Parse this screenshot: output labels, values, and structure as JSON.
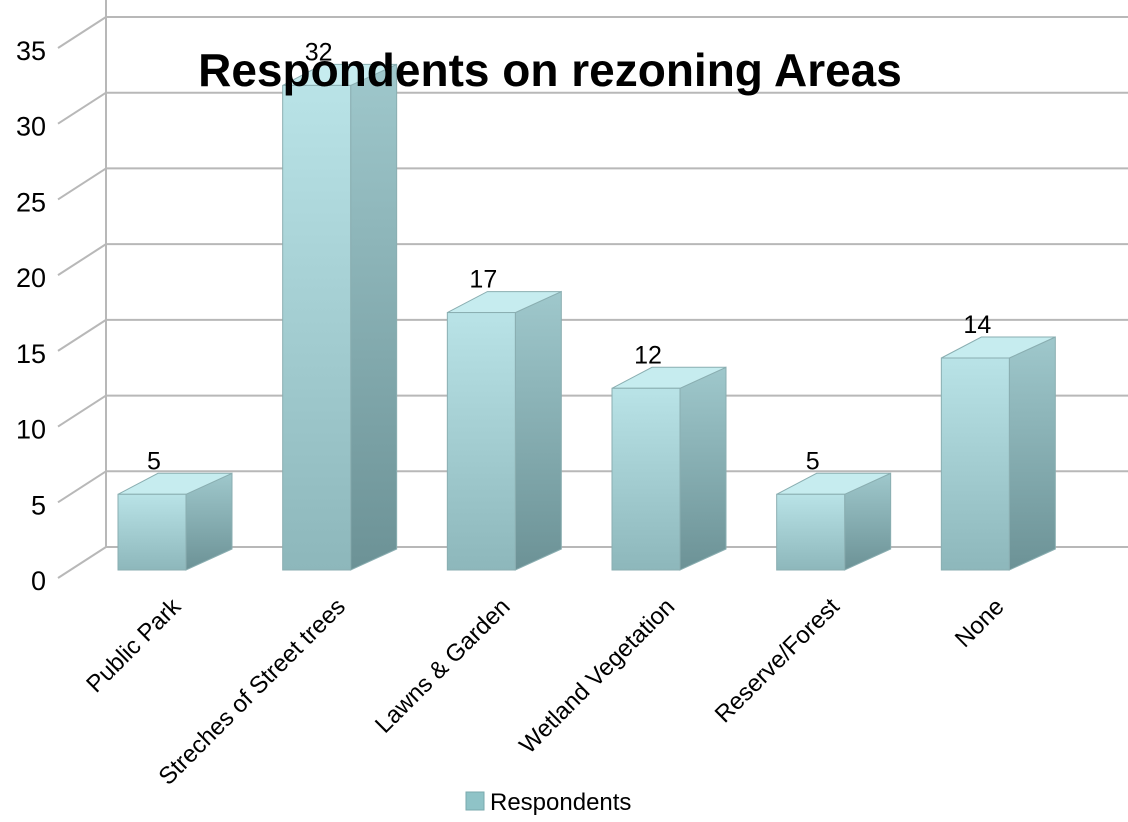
{
  "chart_data": {
    "type": "bar",
    "title": "Respondents on rezoning Areas",
    "categories": [
      "Public Park",
      "Streches of Street trees",
      "Lawns & Garden",
      "Wetland Vegetation",
      "Reserve/Forest",
      "None"
    ],
    "series": [
      {
        "name": "Respondents",
        "values": [
          5,
          32,
          17,
          12,
          5,
          14
        ]
      }
    ],
    "ylim": [
      0,
      35
    ],
    "yticks": [
      "0",
      "5",
      "10",
      "15",
      "20",
      "25",
      "30",
      "35"
    ],
    "xlabel": "",
    "ylabel": "",
    "grid": true,
    "legend": "bottom",
    "three_d": true,
    "colors": {
      "bar_front_light": "#b7e2e6",
      "bar_front_dark": "#8fb9bd",
      "bar_side_light": "#9cc6ca",
      "bar_side_dark": "#6f9599",
      "bar_top": "#c6ecef",
      "gridline": "#b8b8b8",
      "legend_swatch": "#8fc3c7"
    }
  }
}
